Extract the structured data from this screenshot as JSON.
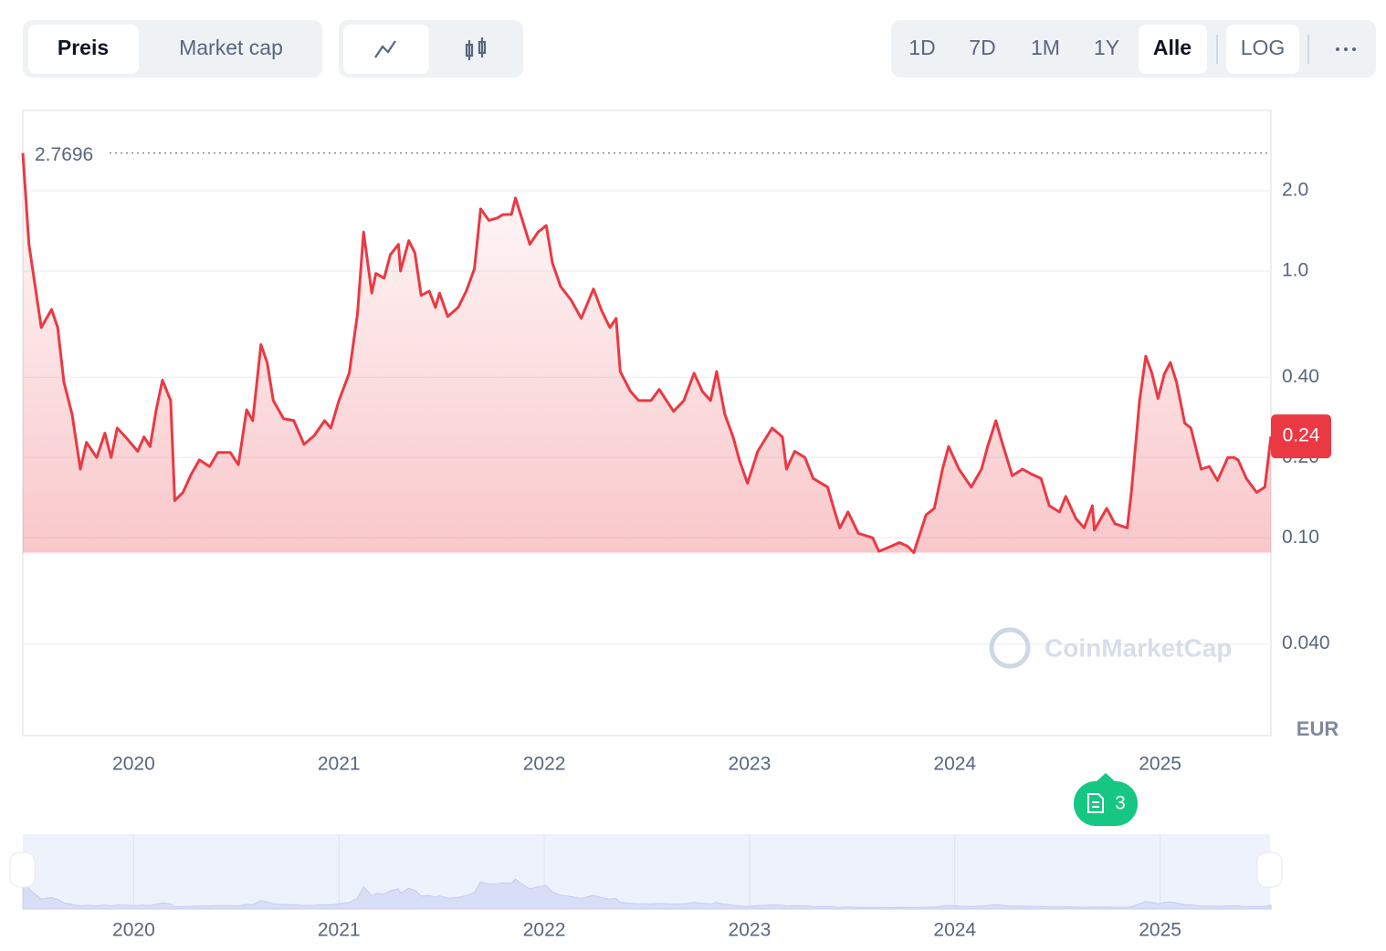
{
  "controls": {
    "metric": [
      "Preis",
      "Market cap"
    ],
    "ranges": [
      "1D",
      "7D",
      "1M",
      "1Y",
      "Alle"
    ],
    "scale": "LOG"
  },
  "chart_data": {
    "type": "line",
    "log_scale": true,
    "grid": true,
    "color": "#ea3943",
    "x": [
      2019.46,
      2019.49,
      2019.55,
      2019.6,
      2019.63,
      2019.66,
      2019.7,
      2019.74,
      2019.77,
      2019.82,
      2019.86,
      2019.89,
      2019.92,
      2019.96,
      2020.02,
      2020.05,
      2020.08,
      2020.11,
      2020.14,
      2020.18,
      2020.2,
      2020.24,
      2020.28,
      2020.32,
      2020.37,
      2020.41,
      2020.47,
      2020.51,
      2020.55,
      2020.58,
      2020.62,
      2020.65,
      2020.68,
      2020.73,
      2020.78,
      2020.83,
      2020.88,
      2020.93,
      2020.96,
      2021.0,
      2021.05,
      2021.09,
      2021.12,
      2021.16,
      2021.18,
      2021.22,
      2021.25,
      2021.29,
      2021.3,
      2021.34,
      2021.37,
      2021.4,
      2021.44,
      2021.47,
      2021.49,
      2021.53,
      2021.58,
      2021.62,
      2021.66,
      2021.69,
      2021.73,
      2021.77,
      2021.8,
      2021.84,
      2021.86,
      2021.89,
      2021.93,
      2021.97,
      2022.01,
      2022.04,
      2022.08,
      2022.13,
      2022.18,
      2022.24,
      2022.28,
      2022.32,
      2022.35,
      2022.37,
      2022.42,
      2022.46,
      2022.52,
      2022.56,
      2022.63,
      2022.68,
      2022.73,
      2022.77,
      2022.81,
      2022.84,
      2022.88,
      2022.92,
      2022.95,
      2022.99,
      2023.04,
      2023.11,
      2023.16,
      2023.18,
      2023.22,
      2023.27,
      2023.31,
      2023.38,
      2023.42,
      2023.44,
      2023.48,
      2023.53,
      2023.6,
      2023.63,
      2023.69,
      2023.73,
      2023.77,
      2023.8,
      2023.86,
      2023.9,
      2023.94,
      2023.97,
      2024.02,
      2024.08,
      2024.13,
      2024.16,
      2024.2,
      2024.23,
      2024.28,
      2024.33,
      2024.37,
      2024.42,
      2024.46,
      2024.51,
      2024.54,
      2024.59,
      2024.63,
      2024.67,
      2024.68,
      2024.74,
      2024.78,
      2024.84,
      2024.86,
      2024.9,
      2024.93,
      2024.96,
      2024.99,
      2025.02,
      2025.05,
      2025.08,
      2025.12,
      2025.15,
      2025.2,
      2025.24,
      2025.28,
      2025.33,
      2025.36,
      2025.38,
      2025.42,
      2025.47,
      2025.51,
      2025.54
    ],
    "values": [
      2.7696,
      1.26,
      0.614,
      0.718,
      0.614,
      0.383,
      0.29,
      0.181,
      0.228,
      0.2,
      0.247,
      0.2,
      0.258,
      0.239,
      0.211,
      0.239,
      0.22,
      0.302,
      0.39,
      0.327,
      0.138,
      0.148,
      0.173,
      0.196,
      0.185,
      0.209,
      0.209,
      0.188,
      0.302,
      0.275,
      0.53,
      0.454,
      0.327,
      0.28,
      0.275,
      0.224,
      0.242,
      0.275,
      0.258,
      0.327,
      0.414,
      0.69,
      1.4,
      0.827,
      0.98,
      0.94,
      1.15,
      1.26,
      1.0,
      1.3,
      1.17,
      0.81,
      0.84,
      0.73,
      0.827,
      0.675,
      0.73,
      0.84,
      1.02,
      1.71,
      1.55,
      1.58,
      1.63,
      1.63,
      1.88,
      1.58,
      1.26,
      1.4,
      1.48,
      1.07,
      0.874,
      0.78,
      0.665,
      0.857,
      0.71,
      0.614,
      0.665,
      0.42,
      0.354,
      0.327,
      0.327,
      0.36,
      0.298,
      0.327,
      0.414,
      0.354,
      0.327,
      0.42,
      0.29,
      0.239,
      0.196,
      0.16,
      0.211,
      0.258,
      0.239,
      0.181,
      0.211,
      0.2,
      0.167,
      0.155,
      0.122,
      0.109,
      0.125,
      0.104,
      0.1,
      0.089,
      0.093,
      0.096,
      0.093,
      0.088,
      0.122,
      0.129,
      0.181,
      0.22,
      0.181,
      0.155,
      0.181,
      0.22,
      0.275,
      0.228,
      0.171,
      0.181,
      0.174,
      0.167,
      0.132,
      0.125,
      0.143,
      0.118,
      0.109,
      0.132,
      0.107,
      0.129,
      0.113,
      0.109,
      0.148,
      0.327,
      0.48,
      0.414,
      0.333,
      0.41,
      0.454,
      0.383,
      0.269,
      0.258,
      0.181,
      0.185,
      0.164,
      0.2,
      0.2,
      0.196,
      0.167,
      0.148,
      0.155,
      0.24
    ],
    "xlim": [
      2019.46,
      2025.54
    ],
    "xticks": [
      2020,
      2021,
      2022,
      2023,
      2024,
      2025
    ],
    "ylim": [
      0.018,
      4.0
    ],
    "yticks": [
      {
        "value": 0.04,
        "label": "0.040"
      },
      {
        "value": 0.1,
        "label": "0.10"
      },
      {
        "value": 0.2,
        "label": "0.20"
      },
      {
        "value": 0.4,
        "label": "0.40"
      },
      {
        "value": 1.0,
        "label": "1.0"
      },
      {
        "value": 2.0,
        "label": "2.0"
      }
    ],
    "max_price": 2.7696,
    "current_price": 0.24,
    "currency": "EUR",
    "watermark": "CoinMarketCap",
    "news_count": 3
  }
}
